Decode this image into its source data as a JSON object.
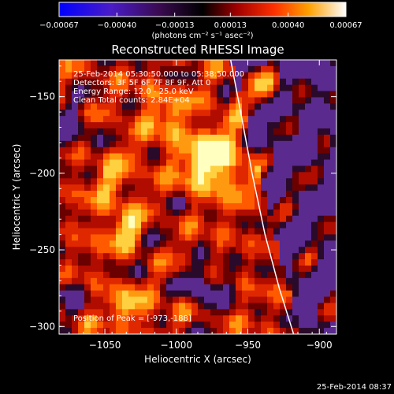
{
  "chart_data": {
    "type": "heatmap",
    "title": "Reconstructed RHESSI Image",
    "xlabel": "Heliocentric X (arcsec)",
    "ylabel": "Heliocentric Y (arcsec)",
    "xlim": [
      -1082,
      -888
    ],
    "ylim": [
      -305,
      -126
    ],
    "xticks": [
      -1050,
      -1000,
      -950,
      -900
    ],
    "xtick_labels": [
      "−1050",
      "−1000",
      "−950",
      "−900"
    ],
    "yticks": [
      -300,
      -250,
      -200,
      -150
    ],
    "ytick_labels": [
      "−300",
      "−250",
      "−200",
      "−150"
    ],
    "colorbar": {
      "min": -0.00067,
      "max": 0.00067,
      "ticks": [
        -0.00067,
        -0.0004,
        -0.00013,
        0.00013,
        0.0004,
        0.00067
      ],
      "tick_labels": [
        "−0.00067",
        "−0.00040",
        "−0.00013",
        "0.00013",
        "0.00040",
        "0.00067"
      ],
      "unit_label": "(photons cm⁻² s⁻¹ asec⁻²)"
    },
    "annotations": [
      "25-Feb-2014 05:30:50.000 to 05:38:50.000",
      "Detectors: 3F 5F 6F 7F 8F 9F, Att 0",
      "Energy Range: 12.0 - 25.0 keV",
      "Clean     Total counts: 2.84E+04"
    ],
    "peak_label": "Position of Peak = [-973,-188]",
    "peak": [
      -973,
      -188
    ],
    "limb_curve": [
      [
        -962,
        -126
      ],
      [
        -955,
        -160
      ],
      [
        -947,
        -200
      ],
      [
        -938,
        -240
      ],
      [
        -928,
        -275
      ],
      [
        -918,
        -305
      ]
    ],
    "colors": {
      "dark_region": "#5a2a8f",
      "bright_peak": "#ffffc0"
    }
  },
  "footer_timestamp": "25-Feb-2014 08:37"
}
